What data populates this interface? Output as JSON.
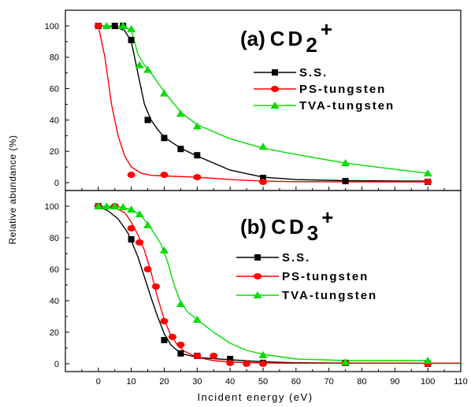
{
  "chart_data": [
    {
      "type": "scatter",
      "panel_label": "(a)",
      "species": "CD",
      "subscript": "2",
      "superscript": "+",
      "xlim": [
        -10,
        110
      ],
      "ylim": [
        -5,
        110
      ],
      "x_ticks": [
        0,
        10,
        20,
        30,
        40,
        50,
        60,
        70,
        80,
        90,
        100,
        110
      ],
      "y_ticks": [
        0,
        20,
        40,
        60,
        80,
        100
      ],
      "legend_position": "right",
      "series": [
        {
          "name": "S.S.",
          "color": "#000000",
          "marker": "square",
          "points": [
            [
              0,
              100
            ],
            [
              5,
              100
            ],
            [
              7.5,
              100
            ],
            [
              10,
              91
            ],
            [
              15,
              40
            ],
            [
              20,
              28.5
            ],
            [
              25,
              21.5
            ],
            [
              30,
              17.5
            ],
            [
              50,
              3
            ],
            [
              75,
              1
            ],
            [
              100,
              0.5
            ]
          ],
          "fit": [
            [
              0,
              100
            ],
            [
              5,
              99.5
            ],
            [
              8,
              97
            ],
            [
              10,
              90
            ],
            [
              12,
              70
            ],
            [
              14,
              50
            ],
            [
              16,
              40
            ],
            [
              18,
              34
            ],
            [
              20,
              29
            ],
            [
              25,
              22
            ],
            [
              30,
              17
            ],
            [
              40,
              8
            ],
            [
              50,
              3.5
            ],
            [
              60,
              2
            ],
            [
              75,
              1.3
            ],
            [
              100,
              1
            ]
          ]
        },
        {
          "name": "PS-tungsten",
          "color": "#ff0000",
          "marker": "circle",
          "points": [
            [
              0,
              100
            ],
            [
              10,
              5
            ],
            [
              20,
              5
            ],
            [
              30,
              3.5
            ],
            [
              50,
              0.5
            ],
            [
              100,
              0.5
            ]
          ],
          "fit": [
            [
              0,
              100
            ],
            [
              2,
              80
            ],
            [
              4,
              50
            ],
            [
              6,
              30
            ],
            [
              8,
              17
            ],
            [
              10,
              10
            ],
            [
              13,
              6
            ],
            [
              16,
              4.7
            ],
            [
              20,
              4.3
            ],
            [
              30,
              3.5
            ],
            [
              40,
              2
            ],
            [
              50,
              1
            ],
            [
              60,
              0.6
            ],
            [
              75,
              0.5
            ],
            [
              100,
              0.5
            ]
          ]
        },
        {
          "name": "TVA-tungsten",
          "color": "#00dd00",
          "marker": "triangle",
          "points": [
            [
              2.5,
              100
            ],
            [
              7.5,
              100
            ],
            [
              10,
              98
            ],
            [
              12.5,
              75
            ],
            [
              15,
              72
            ],
            [
              20,
              57
            ],
            [
              25,
              44
            ],
            [
              30,
              36
            ],
            [
              50,
              23
            ],
            [
              75,
              12.5
            ],
            [
              100,
              6
            ]
          ],
          "fit": [
            [
              0,
              100
            ],
            [
              5,
              100
            ],
            [
              8,
              99.5
            ],
            [
              10,
              97
            ],
            [
              11,
              90
            ],
            [
              12,
              82
            ],
            [
              14,
              75
            ],
            [
              16,
              70
            ],
            [
              20,
              58
            ],
            [
              25,
              45
            ],
            [
              30,
              37
            ],
            [
              40,
              28
            ],
            [
              50,
              22
            ],
            [
              60,
              18
            ],
            [
              75,
              12.5
            ],
            [
              90,
              8.5
            ],
            [
              100,
              6
            ]
          ]
        }
      ]
    },
    {
      "type": "scatter",
      "panel_label": "(b)",
      "species": "CD",
      "subscript": "3",
      "superscript": "+",
      "xlim": [
        -10,
        110
      ],
      "ylim": [
        -5,
        110
      ],
      "x_ticks": [
        0,
        10,
        20,
        30,
        40,
        50,
        60,
        70,
        80,
        90,
        100,
        110
      ],
      "y_ticks": [
        0,
        20,
        40,
        60,
        80,
        100
      ],
      "legend_position": "right",
      "series": [
        {
          "name": "S.S.",
          "color": "#000000",
          "marker": "square",
          "points": [
            [
              0,
              100
            ],
            [
              10,
              79
            ],
            [
              20,
              15
            ],
            [
              25,
              6.5
            ],
            [
              30,
              5
            ],
            [
              40,
              3
            ],
            [
              50,
              0.5
            ],
            [
              75,
              0.5
            ],
            [
              100,
              0
            ]
          ],
          "fit": [
            [
              0,
              100
            ],
            [
              3,
              97
            ],
            [
              6,
              92
            ],
            [
              9,
              83
            ],
            [
              12,
              68
            ],
            [
              14,
              55
            ],
            [
              16,
              42
            ],
            [
              18,
              30
            ],
            [
              20,
              19
            ],
            [
              22,
              12
            ],
            [
              25,
              6.5
            ],
            [
              30,
              4
            ],
            [
              40,
              2.5
            ],
            [
              50,
              1.2
            ],
            [
              60,
              0.6
            ],
            [
              75,
              0.4
            ],
            [
              100,
              0.3
            ],
            [
              110,
              0.3
            ]
          ]
        },
        {
          "name": "PS-tungsten",
          "color": "#ff0000",
          "marker": "circle",
          "points": [
            [
              0,
              100
            ],
            [
              5,
              100
            ],
            [
              10,
              86
            ],
            [
              12.5,
              77
            ],
            [
              15,
              60
            ],
            [
              17.5,
              49
            ],
            [
              20,
              27
            ],
            [
              22.5,
              17
            ],
            [
              25,
              12
            ],
            [
              30,
              5
            ],
            [
              35,
              5
            ],
            [
              40,
              0.5
            ],
            [
              45,
              0
            ],
            [
              50,
              0
            ],
            [
              75,
              0.5
            ],
            [
              100,
              0
            ]
          ],
          "fit": [
            [
              0,
              100
            ],
            [
              5,
              99
            ],
            [
              8,
              96
            ],
            [
              10,
              90
            ],
            [
              12,
              82
            ],
            [
              14,
              72
            ],
            [
              16,
              58
            ],
            [
              18,
              42
            ],
            [
              20,
              28
            ],
            [
              22,
              18
            ],
            [
              24,
              12
            ],
            [
              26,
              8
            ],
            [
              30,
              4
            ],
            [
              35,
              2
            ],
            [
              40,
              1
            ],
            [
              50,
              0.5
            ],
            [
              60,
              0.3
            ],
            [
              110,
              0.3
            ]
          ]
        },
        {
          "name": "TVA-tungsten",
          "color": "#00dd00",
          "marker": "triangle",
          "points": [
            [
              0,
              100
            ],
            [
              2.5,
              100
            ],
            [
              5,
              100
            ],
            [
              7.5,
              99.5
            ],
            [
              10,
              98
            ],
            [
              12.5,
              95
            ],
            [
              15,
              88
            ],
            [
              20,
              72
            ],
            [
              25,
              38
            ],
            [
              30,
              28
            ],
            [
              50,
              5.5
            ],
            [
              75,
              1
            ],
            [
              100,
              2
            ]
          ],
          "fit": [
            [
              0,
              100
            ],
            [
              5,
              100
            ],
            [
              10,
              98
            ],
            [
              13,
              94
            ],
            [
              16,
              86
            ],
            [
              19,
              76
            ],
            [
              21,
              65
            ],
            [
              23,
              50
            ],
            [
              25,
              39
            ],
            [
              27,
              33
            ],
            [
              30,
              28
            ],
            [
              35,
              20
            ],
            [
              40,
              13
            ],
            [
              45,
              8.5
            ],
            [
              50,
              6
            ],
            [
              60,
              3
            ],
            [
              75,
              2
            ],
            [
              90,
              2
            ],
            [
              100,
              2
            ]
          ]
        }
      ]
    }
  ],
  "axes": {
    "xlabel": "Incident energy (eV)",
    "ylabel": "Relative abundance (%)"
  }
}
